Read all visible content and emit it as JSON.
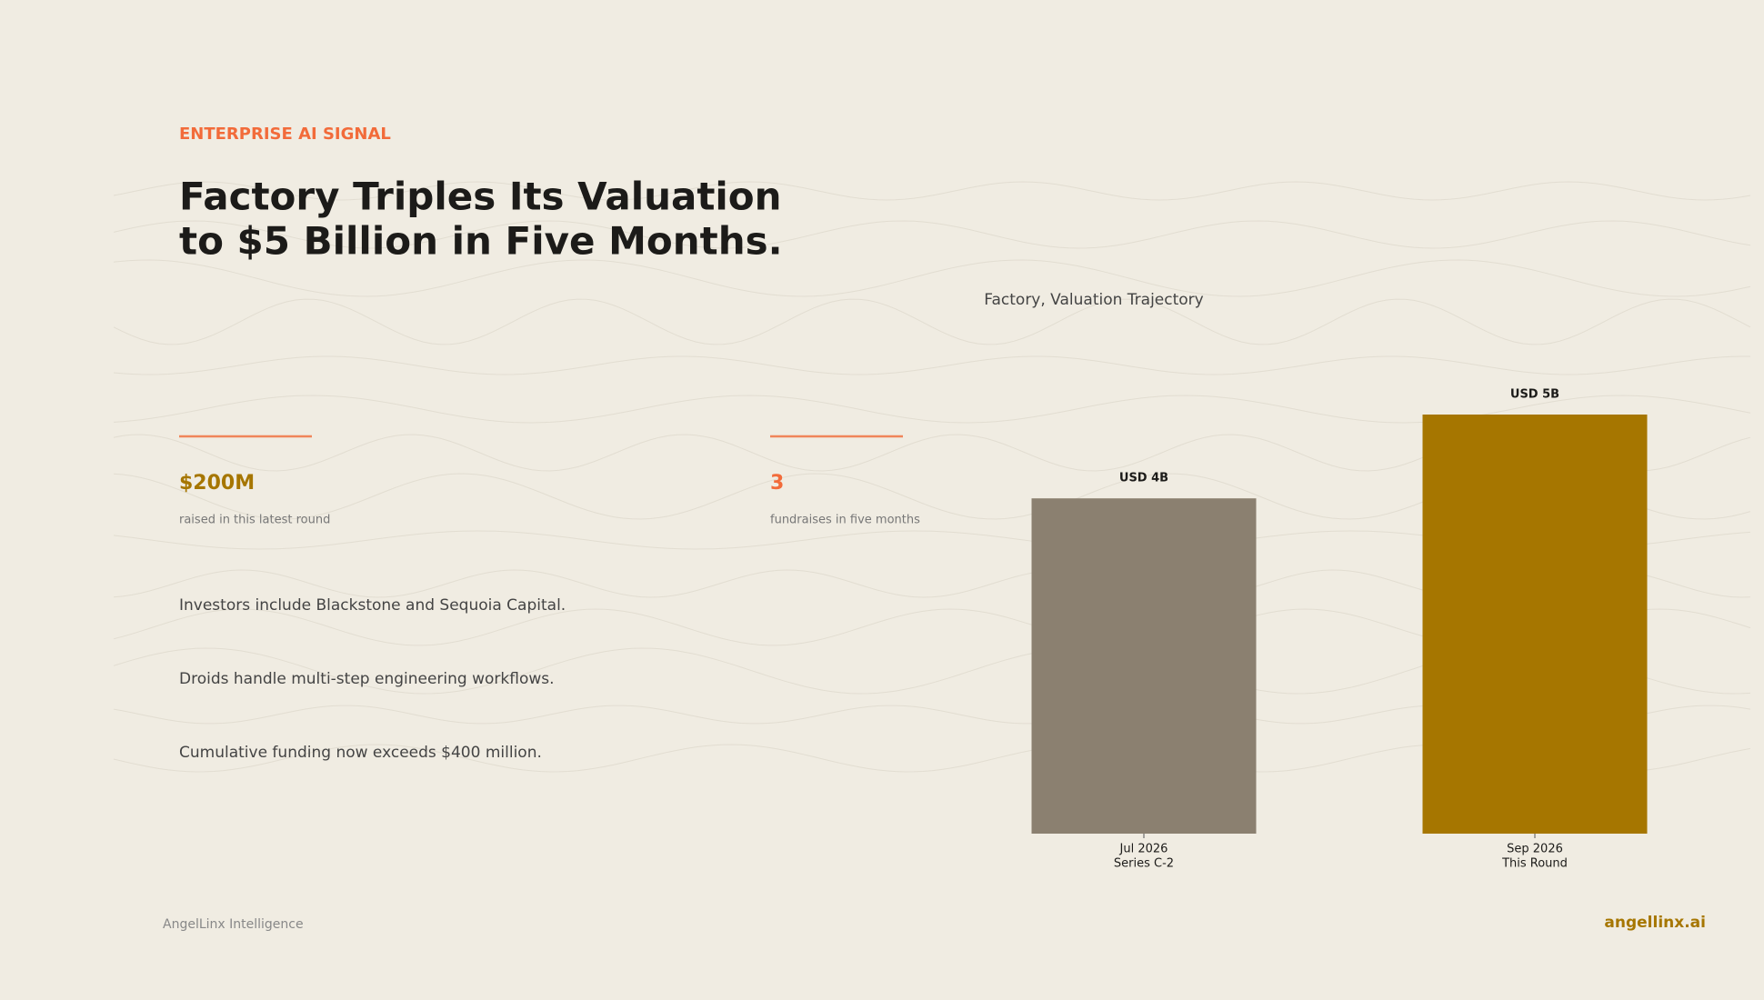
{
  "kicker": "ENTERPRISE AI SIGNAL",
  "headline": [
    "Factory Triples Its Valuation",
    "to $5 Billion in Five Months."
  ],
  "stats": [
    {
      "value": "$200M",
      "caption": "raised in this latest round"
    },
    {
      "value": "3",
      "caption": "fundraises in five months"
    }
  ],
  "bullets": [
    "Investors include Blackstone and Sequoia Capital.",
    "Droids handle multi-step engineering workflows.",
    "Cumulative funding now exceeds $400 million."
  ],
  "footer": {
    "source": "AngelLinx Intelligence",
    "brand": "angellinx.ai"
  },
  "chart_data": {
    "type": "bar",
    "title": "Factory, Valuation Trajectory",
    "categories": [
      [
        "Jul 2026",
        "Series C-2"
      ],
      [
        "Sep 2026",
        "This Round"
      ]
    ],
    "values": [
      4,
      5
    ],
    "value_labels": [
      "USD 4B",
      "USD 5B"
    ],
    "colors": [
      "#8b8070",
      "#a67600"
    ]
  }
}
